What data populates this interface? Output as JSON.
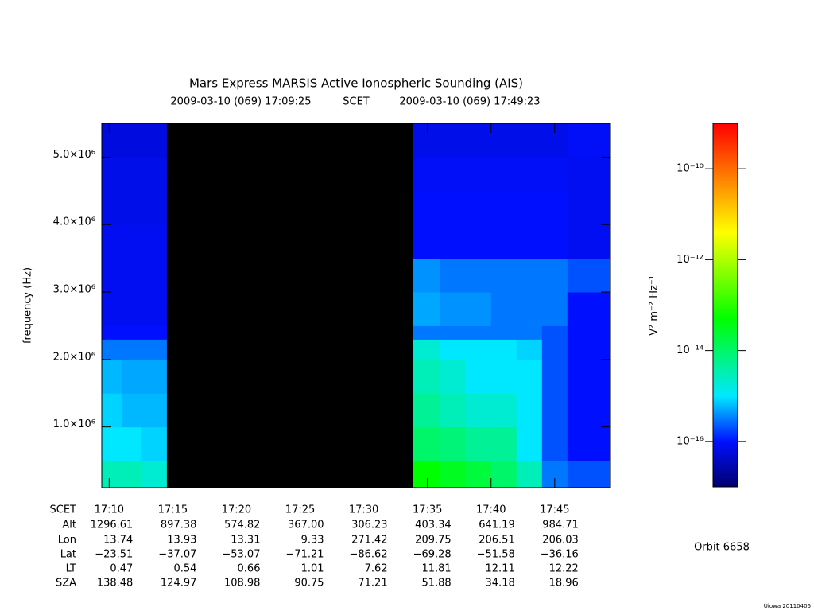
{
  "chart_data": {
    "type": "spectrogram",
    "title": "Mars Express MARSIS Active Ionospheric Sounding (AIS)",
    "subtitle": [
      "2009-03-10 (069) 17:09:25",
      "SCET",
      "2009-03-10 (069) 17:49:23"
    ],
    "ylabel": "frequency (Hz)",
    "xlim": [
      "17:09:25",
      "17:49:23"
    ],
    "xticks": [
      "17:10",
      "17:15",
      "17:20",
      "17:25",
      "17:30",
      "17:35",
      "17:40",
      "17:45"
    ],
    "ylim": [
      100000,
      5500000
    ],
    "yticks": [
      {
        "value": 1000000,
        "label": "1.0×10⁶"
      },
      {
        "value": 2000000,
        "label": "2.0×10⁶"
      },
      {
        "value": 3000000,
        "label": "3.0×10⁶"
      },
      {
        "value": 4000000,
        "label": "4.0×10⁶"
      },
      {
        "value": 5000000,
        "label": "5.0×10⁶"
      }
    ],
    "x_edges": [
      "17:09:25",
      "17:11:00",
      "17:12:30",
      "17:14:30",
      "17:33:50",
      "17:36:00",
      "17:38:00",
      "17:40:00",
      "17:42:00",
      "17:44:00",
      "17:46:00",
      "17:48:00",
      "17:49:23"
    ],
    "y_edges": [
      100000,
      500000,
      1000000,
      1500000,
      2000000,
      2300000,
      2500000,
      3000000,
      3500000,
      4000000,
      4500000,
      5000000,
      5500000
    ],
    "z": [
      [
        3e-15,
        3e-15,
        2e-15,
        null,
        5e-14,
        3e-14,
        2e-14,
        1e-14,
        3e-15,
        3e-16,
        2e-16,
        2e-16
      ],
      [
        1e-15,
        1e-15,
        8e-16,
        null,
        1e-14,
        8e-15,
        5e-15,
        5e-15,
        1e-15,
        2e-16,
        1e-16,
        1e-16
      ],
      [
        8e-16,
        6e-16,
        6e-16,
        null,
        5e-15,
        3e-15,
        2e-15,
        2e-15,
        1e-15,
        2e-16,
        1e-16,
        1e-16
      ],
      [
        6e-16,
        5e-16,
        5e-16,
        null,
        3e-15,
        2e-15,
        1e-15,
        1e-15,
        1e-15,
        2e-16,
        1e-16,
        1e-16
      ],
      [
        3e-16,
        3e-16,
        3e-16,
        null,
        2e-15,
        1e-15,
        1e-15,
        1e-15,
        8e-16,
        2e-16,
        1e-16,
        1e-16
      ],
      [
        1e-16,
        1e-16,
        1e-16,
        null,
        3e-16,
        3e-16,
        3e-16,
        3e-16,
        3e-16,
        2e-16,
        1e-16,
        1e-16
      ],
      [
        8e-17,
        8e-17,
        8e-17,
        null,
        5e-16,
        4e-16,
        4e-16,
        3e-16,
        3e-16,
        3e-16,
        1e-16,
        1e-16
      ],
      [
        8e-17,
        8e-17,
        8e-17,
        null,
        4e-16,
        3e-16,
        3e-16,
        3e-16,
        3e-16,
        3e-16,
        2e-16,
        2e-16
      ],
      [
        8e-17,
        8e-17,
        8e-17,
        null,
        1e-16,
        1e-16,
        1e-16,
        1e-16,
        1e-16,
        1e-16,
        8e-17,
        8e-17
      ],
      [
        7e-17,
        7e-17,
        7e-17,
        null,
        1e-16,
        1e-16,
        1e-16,
        1e-16,
        1e-16,
        1e-16,
        8e-17,
        8e-17
      ],
      [
        7e-17,
        7e-17,
        7e-17,
        null,
        9e-17,
        9e-17,
        9e-17,
        9e-17,
        9e-17,
        9e-17,
        8e-17,
        8e-17
      ],
      [
        6e-17,
        6e-17,
        6e-17,
        null,
        7e-17,
        7e-17,
        7e-17,
        7e-17,
        7e-17,
        7e-17,
        9e-17,
        9e-17
      ]
    ],
    "zlim": [
      1e-17,
      1e-09
    ],
    "zscale": "log",
    "zticks": [
      {
        "value": 1e-16,
        "label": "10⁻¹⁶"
      },
      {
        "value": 1e-14,
        "label": "10⁻¹⁴"
      },
      {
        "value": 1e-12,
        "label": "10⁻¹²"
      },
      {
        "value": 1e-10,
        "label": "10⁻¹⁰"
      }
    ],
    "zlabel": "V² m⁻² Hz⁻¹",
    "colormap": [
      {
        "value": 1e-17,
        "color": "#00006e"
      },
      {
        "value": 1e-16,
        "color": "#0010ff"
      },
      {
        "value": 1e-15,
        "color": "#00e8ff"
      },
      {
        "value": 5e-14,
        "color": "#00ff00"
      },
      {
        "value": 4e-12,
        "color": "#ffff00"
      },
      {
        "value": 1e-09,
        "color": "#ff0000"
      }
    ]
  },
  "ephemeris": {
    "labels": [
      "SCET",
      "Alt",
      "Lon",
      "Lat",
      "LT",
      "SZA"
    ],
    "rows": [
      [
        "1296.61",
        "897.38",
        "574.82",
        "367.00",
        "306.23",
        "403.34",
        "641.19",
        "984.71"
      ],
      [
        "13.74",
        "13.93",
        "13.31",
        "9.33",
        "271.42",
        "209.75",
        "206.51",
        "206.03"
      ],
      [
        "−23.51",
        "−37.07",
        "−53.07",
        "−71.21",
        "−86.62",
        "−69.28",
        "−51.58",
        "−36.16"
      ],
      [
        "0.47",
        "0.54",
        "0.66",
        "1.01",
        "7.62",
        "11.81",
        "12.11",
        "12.22"
      ],
      [
        "138.48",
        "124.97",
        "108.98",
        "90.75",
        "71.21",
        "51.88",
        "34.18",
        "18.96"
      ]
    ]
  },
  "orbit": "Orbit 6658",
  "credit": "Uiowa 20110406"
}
